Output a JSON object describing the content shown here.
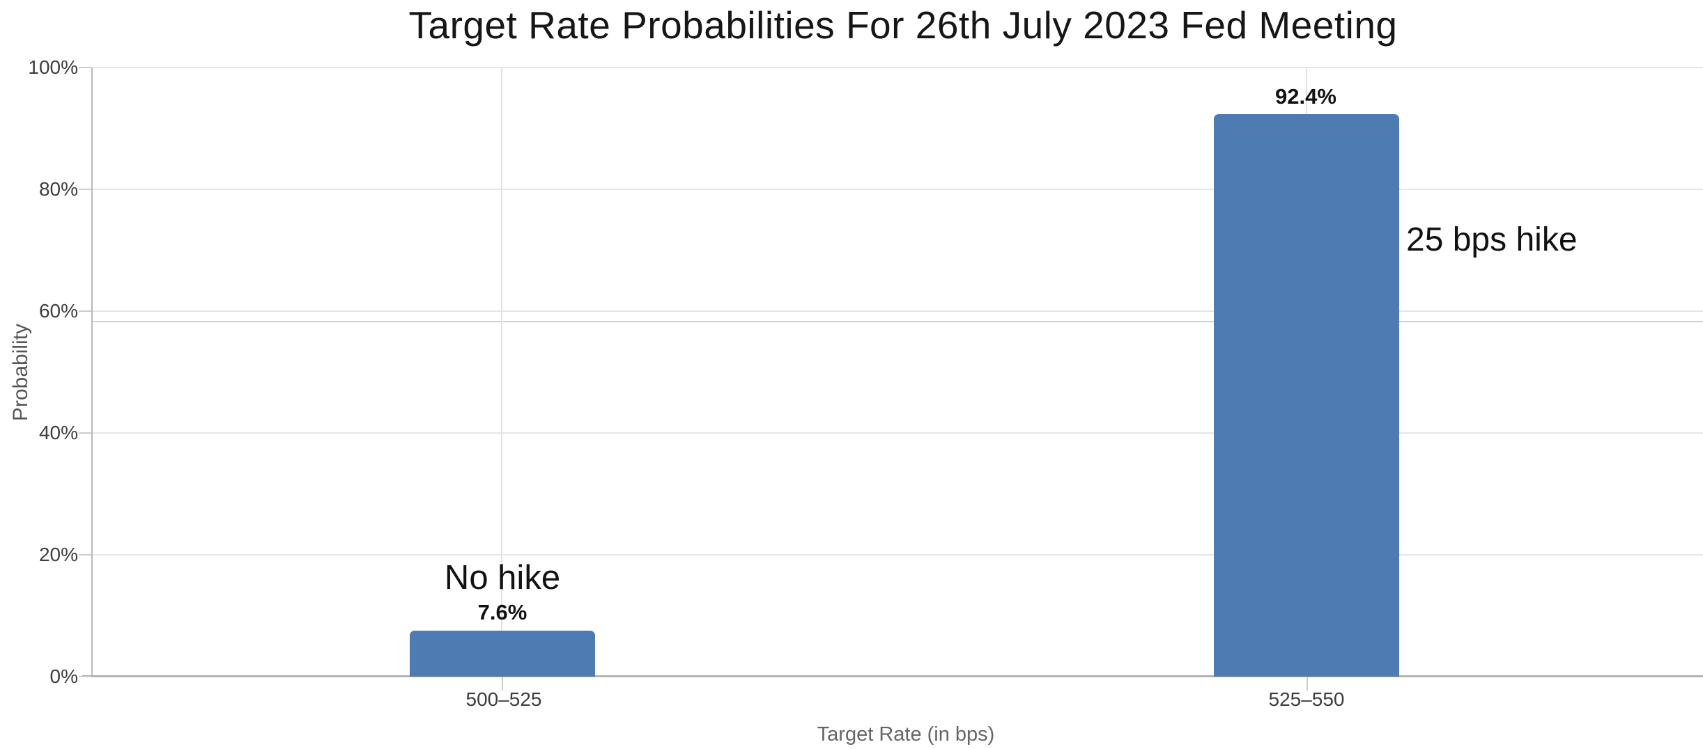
{
  "title": "Target Rate Probabilities For 26th July 2023 Fed Meeting",
  "chart_data": {
    "type": "bar",
    "title": "Target Rate Probabilities For 26th July 2023 Fed Meeting",
    "xlabel": "Target Rate (in bps)",
    "ylabel": "Probability",
    "categories": [
      "500–525",
      "525–550"
    ],
    "values": [
      7.6,
      92.4
    ],
    "value_labels": [
      "7.6%",
      "92.4%"
    ],
    "bar_annotations": [
      "No hike",
      "25 bps hike"
    ],
    "ytick_labels": [
      "100%",
      "80%",
      "60%",
      "40%",
      "20%",
      "0%"
    ],
    "ylim": [
      0,
      100
    ],
    "grid": true,
    "extra_hline_y": 58.4,
    "bar_color": "#4e7cb2",
    "gridline_color": "#e6e6e6",
    "axis_color": "#b3b3b3",
    "legend": null
  }
}
